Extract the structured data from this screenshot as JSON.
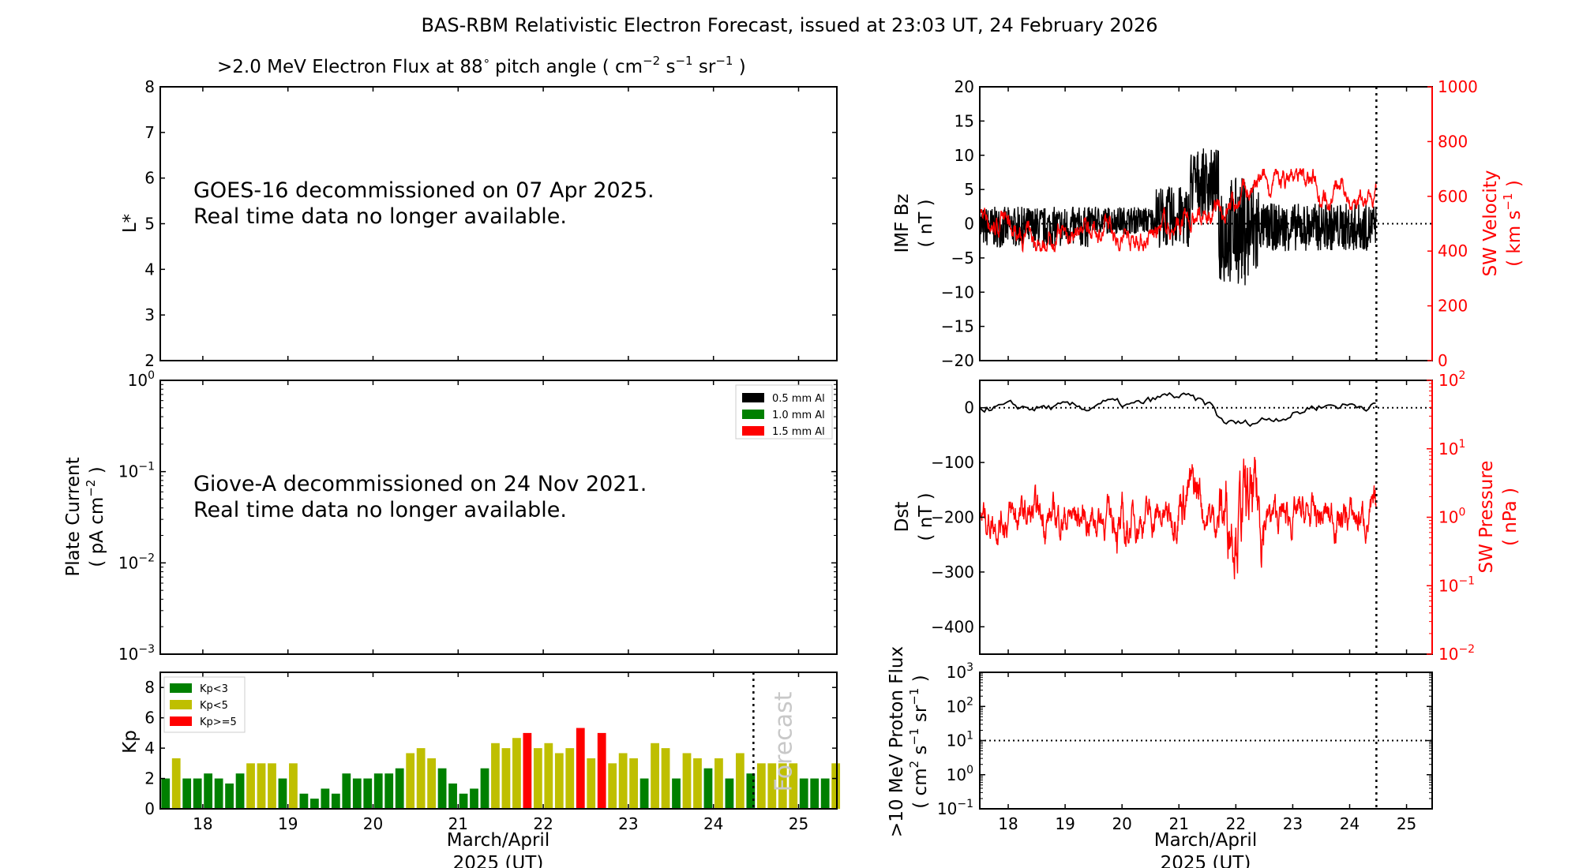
{
  "figure_title": "BAS-RBM Relativistic Electron Forecast, issued at 23:03 UT, 24 February 2026",
  "colors": {
    "black": "#000000",
    "red": "#ff0000",
    "kp_green": "#008000",
    "kp_yellow": "#bfbf00",
    "kp_red": "#ff0000",
    "forecast_text": "#c8c8c8"
  },
  "chart_data": [
    {
      "id": "electron-flux",
      "type": "heatmap",
      "title_main": ">2.0 MeV Electron Flux at 88",
      "title_units": "( cm",
      "ylabel": "L*",
      "ylim": [
        2,
        8
      ],
      "yticks": [
        "2",
        "3",
        "4",
        "5",
        "6",
        "7",
        "8"
      ],
      "message": [
        "GOES-16 decommissioned on 07 Apr 2025.",
        "Real time data no longer available."
      ]
    },
    {
      "id": "plate-current",
      "type": "line",
      "ylabel": "Plate Current",
      "yunits": "( pA cm",
      "yscale": "log",
      "ylim": [
        0.001,
        1
      ],
      "yticks": [
        "10",
        "10",
        "10",
        "10"
      ],
      "ytick_exps": [
        "−3",
        "−2",
        "−1",
        "0"
      ],
      "legend": [
        "0.5 mm Al",
        "1.0 mm Al",
        "1.5 mm Al"
      ],
      "legend_colors": [
        "#000000",
        "#008000",
        "#ff0000"
      ],
      "message": [
        "Giove-A decommissioned on 24 Nov 2021.",
        "Real time data no longer available."
      ]
    },
    {
      "id": "kp",
      "type": "bar",
      "ylabel": "Kp",
      "ylim": [
        0,
        9
      ],
      "yticks": [
        "0",
        "2",
        "4",
        "6",
        "8"
      ],
      "xlim": [
        17.5,
        25.45
      ],
      "xticks": [
        "18",
        "19",
        "20",
        "21",
        "22",
        "23",
        "24",
        "25"
      ],
      "xlabel": [
        "March/April",
        "2025 (UT)"
      ],
      "legend": [
        "Kp<3",
        "Kp<5",
        "Kp>=5"
      ],
      "forecast_label": "Forecast",
      "forecast_start": 24.47,
      "values": [
        2.0,
        3.33,
        2.0,
        2.0,
        2.33,
        2.0,
        1.67,
        2.33,
        3.0,
        3.0,
        3.0,
        2.0,
        3.0,
        1.0,
        0.67,
        1.33,
        1.0,
        2.33,
        2.0,
        2.0,
        2.33,
        2.33,
        2.67,
        3.67,
        4.0,
        3.33,
        2.67,
        1.67,
        1.0,
        1.33,
        2.67,
        4.33,
        4.0,
        4.67,
        5.0,
        4.0,
        4.33,
        3.67,
        4.0,
        5.33,
        3.33,
        5.0,
        3.0,
        3.67,
        3.33,
        2.0,
        4.33,
        4.0,
        2.0,
        3.67,
        3.33,
        2.67,
        3.33,
        2.0,
        3.67,
        2.33,
        3.0,
        3.0,
        3.0,
        3.0,
        2.0,
        2.0,
        2.0,
        3.0
      ]
    },
    {
      "id": "imf-bz",
      "type": "line",
      "ylabel": "IMF Bz",
      "yunits": "( nT )",
      "ylim": [
        -20,
        20
      ],
      "yticks": [
        "−20",
        "−15",
        "−10",
        "−5",
        "0",
        "5",
        "10",
        "15",
        "20"
      ],
      "y2label": "SW Velocity",
      "y2units": "( km s",
      "y2lim": [
        0,
        1000
      ],
      "y2ticks": [
        "0",
        "200",
        "400",
        "600",
        "800",
        "1000"
      ],
      "xlim": [
        17.5,
        25.45
      ],
      "now": 24.47,
      "bz_range": [
        -10,
        13.5
      ],
      "velocity_range": [
        400,
        700
      ]
    },
    {
      "id": "dst",
      "type": "line",
      "ylabel": "Dst",
      "yunits": "( nT )",
      "ylim": [
        -450,
        50
      ],
      "yticks": [
        "−400",
        "−300",
        "−200",
        "−100",
        "0"
      ],
      "y2label": "SW Pressure",
      "y2units": "( nPa )",
      "y2scale": "log",
      "y2lim": [
        0.01,
        100
      ],
      "y2ticks": [
        "10",
        "10",
        "10",
        "10",
        "10"
      ],
      "y2tick_exps": [
        "−2",
        "−1",
        "0",
        "1",
        "2"
      ],
      "xlim": [
        17.5,
        25.45
      ],
      "now": 24.47,
      "dst_range": [
        -50,
        30
      ],
      "pressure_range": [
        0.1,
        10
      ]
    },
    {
      "id": "proton-flux",
      "type": "line",
      "ylabel": ">10 MeV Proton Flux",
      "yunits": "( cm",
      "yscale": "log",
      "ylim": [
        0.1,
        1000
      ],
      "yticks": [
        "10",
        "10",
        "10",
        "10",
        "10"
      ],
      "ytick_exps": [
        "−1",
        "0",
        "1",
        "2",
        "3"
      ],
      "threshold": 10,
      "xlim": [
        17.5,
        25.45
      ],
      "xticks": [
        "18",
        "19",
        "20",
        "21",
        "22",
        "23",
        "24",
        "25"
      ],
      "xlabel": [
        "March/April",
        "2025 (UT)"
      ],
      "now": 24.47
    }
  ]
}
